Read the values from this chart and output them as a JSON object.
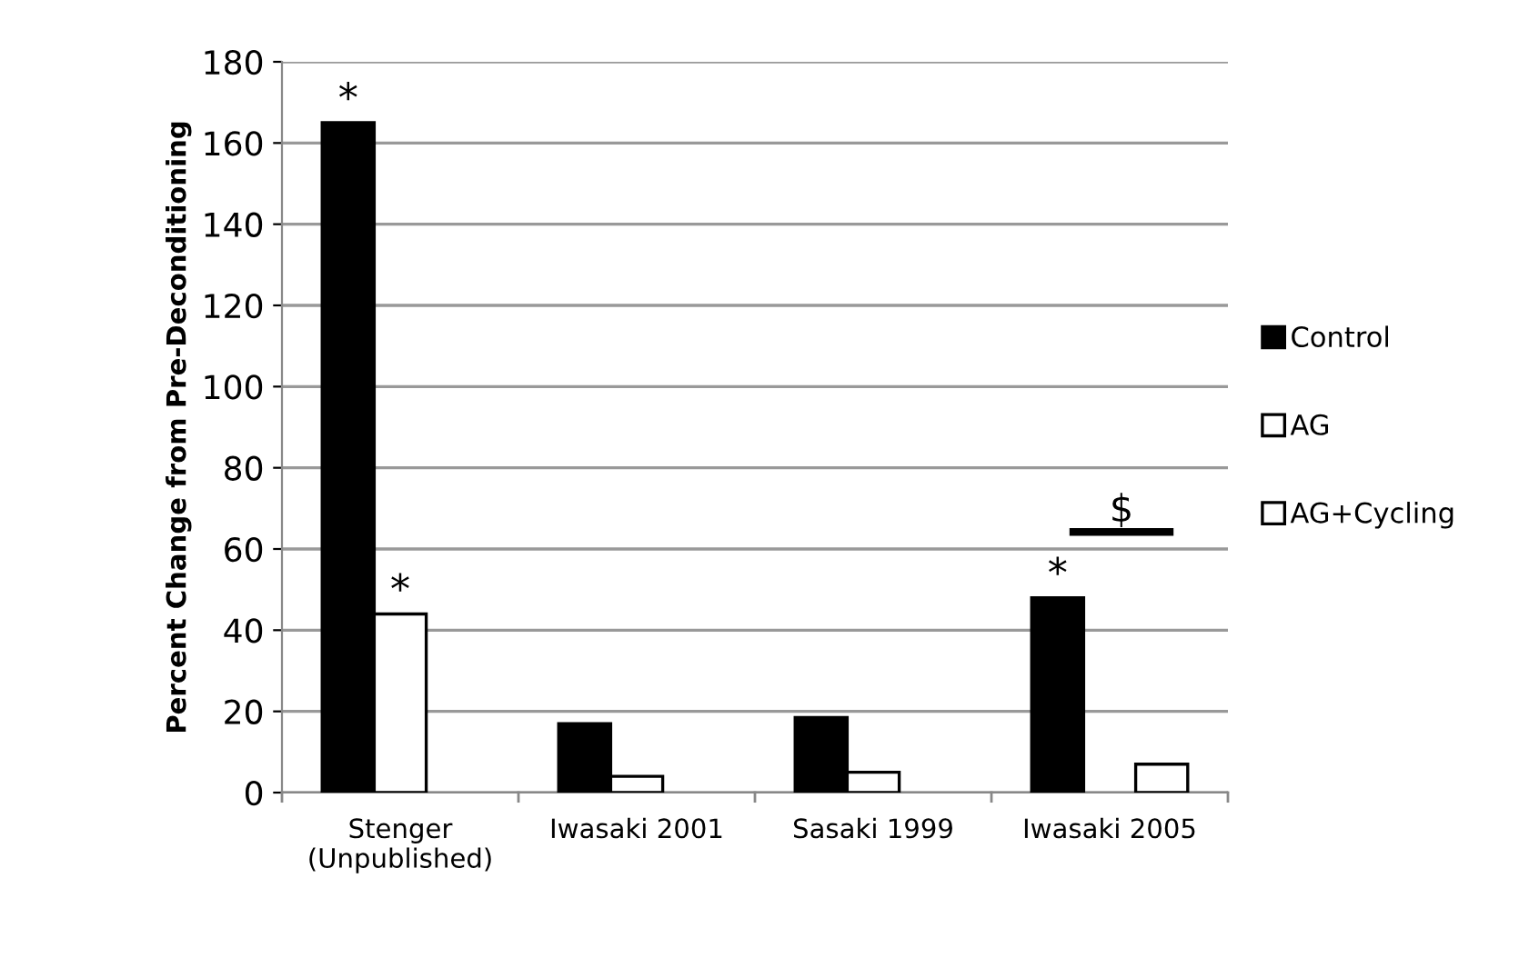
{
  "chart_data": {
    "type": "bar",
    "ylabel": "Percent Change from Pre-Deconditioning",
    "categories": [
      "Stenger\n(Unpublished)",
      "Iwasaki 2001",
      "Sasaki 1999",
      "Iwasaki 2005"
    ],
    "series": [
      {
        "name": "Control",
        "color": "#000000",
        "values": [
          165,
          17,
          18.5,
          48
        ]
      },
      {
        "name": "AG",
        "color": "#ffffff",
        "values": [
          44,
          4,
          5,
          null
        ]
      },
      {
        "name": "AG+Cycling",
        "color": "#ffffff",
        "values": [
          null,
          null,
          null,
          7
        ]
      }
    ],
    "ylim": [
      0,
      180
    ],
    "yticks": [
      0,
      20,
      40,
      60,
      80,
      100,
      120,
      140,
      160,
      180
    ],
    "grid": "y",
    "legend": "right",
    "annotations": [
      "*",
      "*",
      "*",
      "$"
    ]
  }
}
